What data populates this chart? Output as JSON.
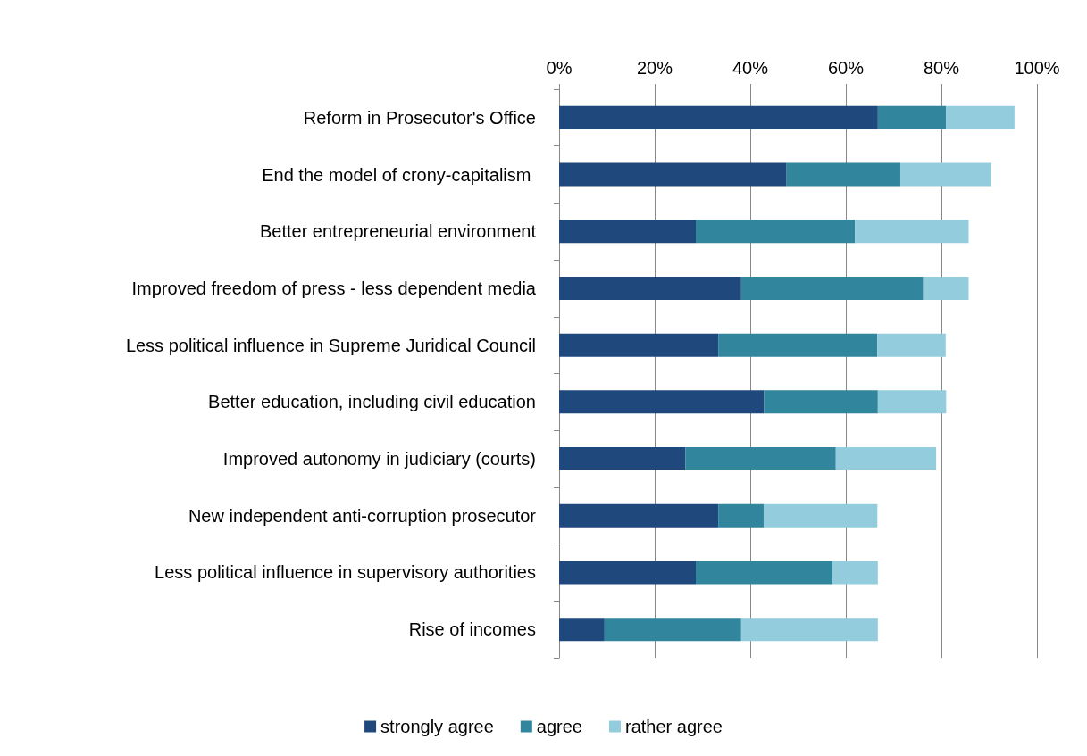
{
  "chart_data": {
    "type": "bar",
    "orientation": "horizontal",
    "stacked": true,
    "categories": [
      "Reform in Prosecutor's Office",
      "End the model of crony-capitalism ",
      "Better entrepreneurial environment",
      "Improved freedom of press - less dependent media",
      "Less political influence in Supreme Juridical Council",
      "Better education, including civil education",
      "Improved autonomy in judiciary (courts)",
      "New independent anti-corruption prosecutor",
      "Less political influence in supervisory authorities",
      "Rise of incomes"
    ],
    "series": [
      {
        "name": "strongly agree",
        "color": "#1f497d",
        "values": [
          66.7,
          47.6,
          28.6,
          38.1,
          33.3,
          42.9,
          26.4,
          33.3,
          28.6,
          9.5
        ]
      },
      {
        "name": "agree",
        "color": "#31859c",
        "values": [
          14.3,
          23.8,
          33.3,
          38.1,
          33.3,
          23.8,
          31.5,
          9.5,
          28.6,
          28.6
        ]
      },
      {
        "name": "rather agree",
        "color": "#93cddd",
        "values": [
          14.3,
          19.0,
          23.8,
          9.5,
          14.3,
          14.3,
          21.0,
          23.8,
          9.5,
          28.6
        ]
      }
    ],
    "xlim": [
      0,
      100
    ],
    "xticks": [
      {
        "value": 0,
        "label": "0%"
      },
      {
        "value": 20,
        "label": "20%"
      },
      {
        "value": 40,
        "label": "40%"
      },
      {
        "value": 60,
        "label": "60%"
      },
      {
        "value": 80,
        "label": "80%"
      },
      {
        "value": 100,
        "label": "100%"
      }
    ],
    "grid": "x",
    "legend": "bottom"
  }
}
